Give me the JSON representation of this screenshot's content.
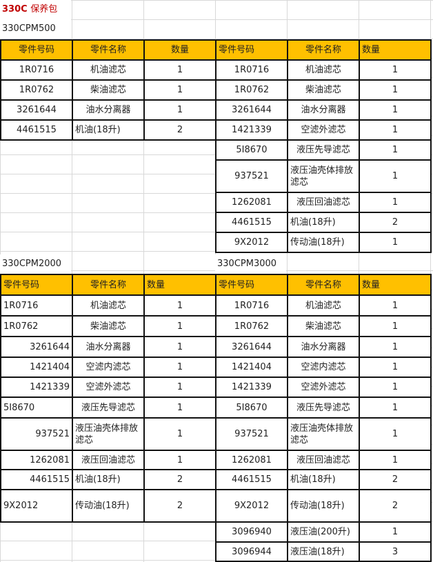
{
  "title": {
    "model": "330C",
    "text": "保养包"
  },
  "headers": [
    "零件号码",
    "零件名称",
    "数量"
  ],
  "packages": [
    {
      "label": "330CPM500",
      "rows": [
        [
          "1R0716",
          "机油滤芯",
          "1"
        ],
        [
          "1R0762",
          "柴油滤芯",
          "1"
        ],
        [
          "3261644",
          "油水分离器",
          "1"
        ],
        [
          "4461515",
          "机油(18升)",
          "2"
        ]
      ]
    },
    {
      "label": "",
      "rows": [
        [
          "1R0716",
          "机油滤芯",
          "1"
        ],
        [
          "1R0762",
          "柴油滤芯",
          "1"
        ],
        [
          "3261644",
          "油水分离器",
          "1"
        ],
        [
          "1421339",
          "空滤外滤芯",
          "1"
        ],
        [
          "5I8670",
          "液压先导滤芯",
          "1"
        ],
        [
          "937521",
          "液压油壳体排放滤芯",
          "1"
        ],
        [
          "1262081",
          "液压回油滤芯",
          "1"
        ],
        [
          "4461515",
          "机油(18升)",
          "2"
        ],
        [
          "9X2012",
          "传动油(18升)",
          "1"
        ]
      ]
    },
    {
      "label": "330CPM2000",
      "rows": [
        [
          "1R0716",
          "机油滤芯",
          "1"
        ],
        [
          "1R0762",
          "柴油滤芯",
          "1"
        ],
        [
          "3261644",
          "油水分离器",
          "1"
        ],
        [
          "1421404",
          "空滤内滤芯",
          "1"
        ],
        [
          "1421339",
          "空滤外滤芯",
          "1"
        ],
        [
          "5I8670",
          "液压先导滤芯",
          "1"
        ],
        [
          "937521",
          "液压油壳体排放滤芯",
          "1"
        ],
        [
          "1262081",
          "液压回油滤芯",
          "1"
        ],
        [
          "4461515",
          "机油(18升)",
          "2"
        ],
        [
          "9X2012",
          "传动油(18升)",
          "2"
        ]
      ]
    },
    {
      "label": "330CPM3000",
      "rows": [
        [
          "1R0716",
          "机油滤芯",
          "1"
        ],
        [
          "1R0762",
          "柴油滤芯",
          "1"
        ],
        [
          "3261644",
          "油水分离器",
          "1"
        ],
        [
          "1421404",
          "空滤内滤芯",
          "1"
        ],
        [
          "1421339",
          "空滤外滤芯",
          "1"
        ],
        [
          "5I8670",
          "液压先导滤芯",
          "1"
        ],
        [
          "937521",
          "液压油壳体排放滤芯",
          "1"
        ],
        [
          "1262081",
          "液压回油滤芯",
          "1"
        ],
        [
          "4461515",
          "机油(18升)",
          "2"
        ],
        [
          "9X2012",
          "传动油(18升)",
          "2"
        ],
        [
          "3096940",
          "液压油(200升)",
          "1"
        ],
        [
          "3096944",
          "液压油(18升)",
          "3"
        ]
      ]
    }
  ]
}
